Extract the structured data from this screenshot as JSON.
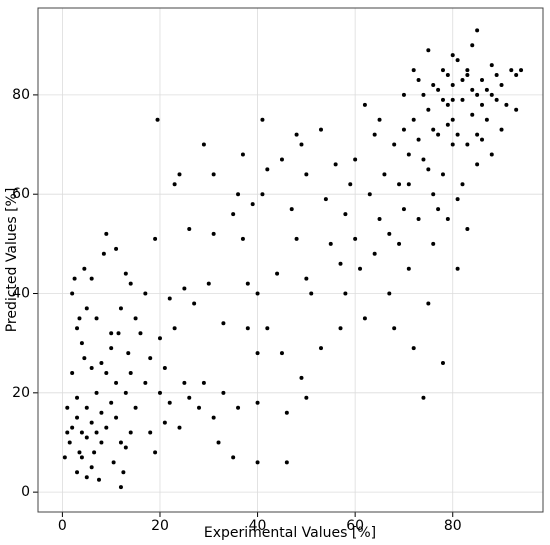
{
  "chart_data": {
    "type": "scatter",
    "x_label": "Experimental Values [%]",
    "y_label": "Predicted Values [%]",
    "color": "#000000",
    "grid": true,
    "xlim": [
      -5,
      98.5
    ],
    "ylim": [
      -4,
      97.5
    ],
    "xticks": [
      0,
      20,
      40,
      60,
      80
    ],
    "yticks": [
      0,
      20,
      40,
      60,
      80
    ],
    "x": [
      1,
      1.5,
      2,
      2,
      2.5,
      3,
      3,
      3,
      3.5,
      4,
      4,
      4.5,
      5,
      5,
      5,
      6,
      6,
      6.5,
      7,
      7,
      7.5,
      8,
      8,
      8.5,
      9,
      9,
      10,
      10,
      10.5,
      11,
      11,
      11.5,
      12,
      12,
      12.5,
      13,
      13,
      13.5,
      14,
      14,
      15,
      15,
      2,
      3,
      4,
      5,
      6,
      7,
      8,
      9,
      10,
      11,
      12,
      13,
      14,
      1,
      0.5,
      3.5,
      4.5,
      6,
      16,
      17,
      17,
      18,
      18,
      19,
      19,
      19.5,
      20,
      20,
      21,
      21,
      22,
      22,
      23,
      23,
      24,
      24,
      25,
      25,
      26,
      26,
      27,
      28,
      29,
      29,
      30,
      31,
      31,
      31,
      32,
      33,
      33,
      35,
      35,
      36,
      36,
      37,
      37,
      38,
      38,
      39,
      40,
      40,
      40,
      40,
      41,
      41,
      42,
      42,
      44,
      45,
      45,
      46,
      46,
      47,
      48,
      48,
      49,
      49,
      50,
      50,
      50,
      51,
      53,
      53,
      54,
      55,
      56,
      57,
      57,
      58,
      58,
      59,
      60,
      60,
      61,
      62,
      62,
      63,
      64,
      64,
      65,
      65,
      66,
      67,
      67,
      68,
      68,
      69,
      70,
      70,
      71,
      71,
      72,
      72,
      73,
      73,
      74,
      74,
      75,
      75,
      75,
      76,
      76,
      77,
      77,
      78,
      78,
      78,
      79,
      79,
      80,
      80,
      80,
      81,
      81,
      81,
      82,
      82,
      83,
      83,
      84,
      84,
      85,
      85,
      85,
      86,
      86,
      87,
      87,
      88,
      88,
      89,
      89,
      90,
      90,
      91,
      92,
      93,
      93,
      94,
      72,
      74,
      76,
      78,
      79,
      80,
      82,
      84,
      86,
      88,
      70,
      73,
      75,
      77,
      79,
      81,
      83,
      85,
      80,
      83,
      76,
      71,
      69
    ],
    "values": [
      17,
      10,
      13,
      40,
      43,
      15,
      19,
      4,
      8,
      12,
      30,
      45,
      37,
      3,
      11,
      14,
      43,
      8,
      35,
      20,
      2.5,
      10,
      26,
      48,
      52,
      13,
      18,
      29,
      6,
      49,
      22,
      32,
      10,
      1,
      4,
      44,
      20,
      28,
      42,
      12,
      17,
      35,
      24,
      33,
      7,
      17,
      25,
      12,
      16,
      24,
      32,
      15,
      37,
      9,
      24,
      12,
      7,
      35,
      27,
      5,
      32,
      40,
      22,
      27,
      12,
      8,
      51,
      75,
      31,
      20,
      25,
      14,
      39,
      18,
      33,
      62,
      64,
      13,
      22,
      41,
      19,
      53,
      38,
      17,
      22,
      70,
      42,
      52,
      64,
      15,
      10,
      34,
      20,
      56,
      7,
      60,
      17,
      51,
      68,
      33,
      42,
      58,
      40,
      28,
      18,
      6,
      60,
      75,
      33,
      65,
      44,
      28,
      67,
      16,
      6,
      57,
      72,
      51,
      23,
      70,
      43,
      64,
      19,
      40,
      29,
      73,
      59,
      50,
      66,
      46,
      33,
      56,
      40,
      62,
      51,
      67,
      45,
      35,
      78,
      60,
      48,
      72,
      55,
      75,
      64,
      40,
      52,
      70,
      33,
      62,
      57,
      80,
      45,
      68,
      29,
      75,
      55,
      83,
      19,
      67,
      38,
      89,
      77,
      60,
      50,
      72,
      81,
      26,
      64,
      85,
      55,
      78,
      70,
      75,
      82,
      45,
      59,
      87,
      62,
      79,
      53,
      84,
      76,
      90,
      66,
      80,
      93,
      71,
      83,
      75,
      81,
      86,
      68,
      79,
      84,
      82,
      73,
      78,
      85,
      77,
      84,
      85,
      85,
      80,
      82,
      79,
      84,
      79,
      83,
      81,
      78,
      80,
      73,
      71,
      65,
      57,
      74,
      72,
      70,
      72,
      88,
      85,
      73,
      62,
      50
    ]
  }
}
